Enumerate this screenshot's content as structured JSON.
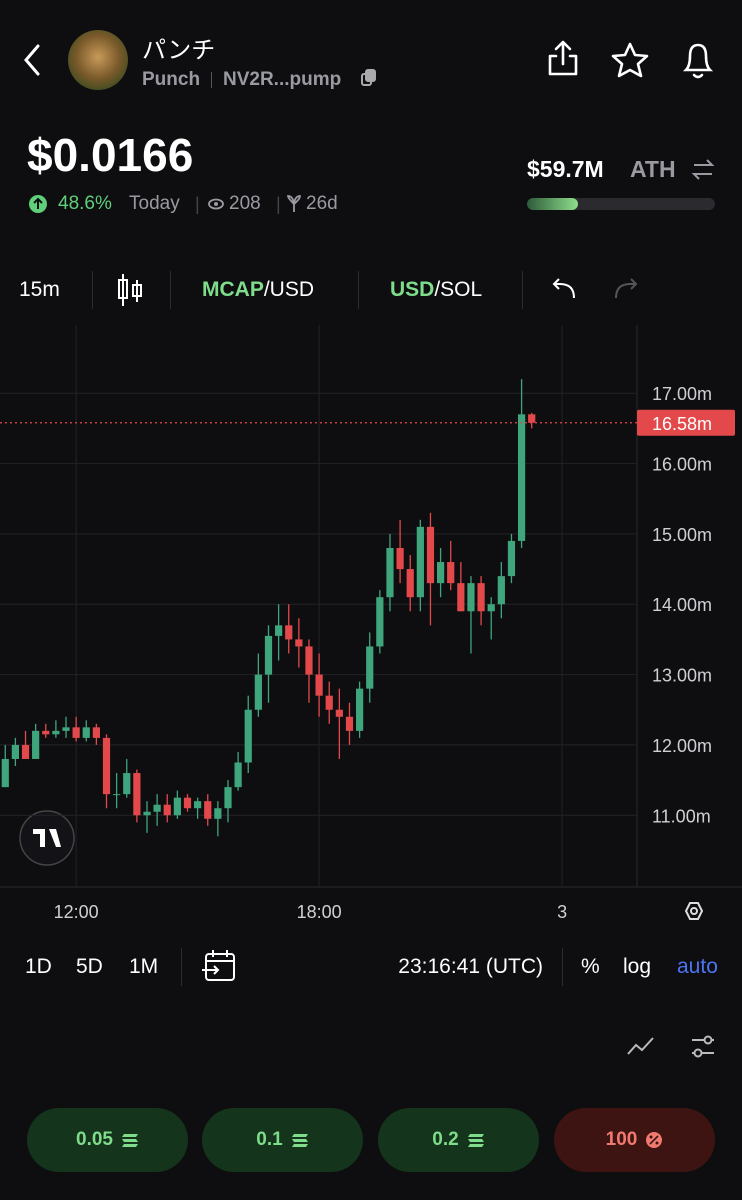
{
  "header": {
    "name": "パンチ",
    "ticker": "Punch",
    "address": "NV2R...pump",
    "price": "$0.0166",
    "change": "48.6%",
    "change_period": "Today",
    "views": "208",
    "age": "26d",
    "ath_value": "$59.7M",
    "ath_label": "ATH",
    "ath_progress": 27
  },
  "toolbar": {
    "interval": "15m",
    "pair1_main": "MCAP",
    "pair1_rest": "/USD",
    "pair2_main": "USD",
    "pair2_rest": "/SOL"
  },
  "chart_data": {
    "type": "candlestick",
    "up_color": "#3fa57c",
    "down_color": "#e3494b",
    "grid": true,
    "x": [
      10.25,
      10.5,
      10.75,
      11,
      11.25,
      11.5,
      11.75,
      12,
      12.25,
      12.5,
      12.75,
      13,
      13.25,
      13.5,
      13.75,
      14,
      14.25,
      14.5,
      14.75,
      15,
      15.25,
      15.5,
      15.75,
      16,
      16.25,
      16.5,
      16.75,
      17,
      17.25,
      17.5,
      17.75,
      18,
      18.25,
      18.5,
      18.75,
      19,
      19.25,
      19.5,
      19.75,
      20,
      20.25,
      20.5,
      20.75,
      21,
      21.25,
      21.5,
      21.75,
      22,
      22.25,
      22.5,
      22.75,
      23,
      23.25
    ],
    "open": [
      11.4,
      11.8,
      12.0,
      11.8,
      12.2,
      12.15,
      12.2,
      12.25,
      12.1,
      12.25,
      12.1,
      11.3,
      11.3,
      11.6,
      11.0,
      11.05,
      11.15,
      11.0,
      11.25,
      11.1,
      11.2,
      10.95,
      11.1,
      11.4,
      11.75,
      12.5,
      13.0,
      13.55,
      13.7,
      13.5,
      13.4,
      13.0,
      12.7,
      12.5,
      12.4,
      12.2,
      12.8,
      13.4,
      14.1,
      14.8,
      14.5,
      14.1,
      15.1,
      14.3,
      14.6,
      14.3,
      13.9,
      14.3,
      13.9,
      14.0,
      14.4,
      14.9,
      16.7
    ],
    "high": [
      12.0,
      12.1,
      12.2,
      12.3,
      12.3,
      12.35,
      12.4,
      12.4,
      12.35,
      12.3,
      12.15,
      11.6,
      11.8,
      11.65,
      11.2,
      11.3,
      11.3,
      11.35,
      11.3,
      11.25,
      11.3,
      11.2,
      11.5,
      11.9,
      12.7,
      13.3,
      13.7,
      14.0,
      14.0,
      13.8,
      13.5,
      13.3,
      12.9,
      12.8,
      12.6,
      12.9,
      13.6,
      14.2,
      15.0,
      15.2,
      14.7,
      15.2,
      15.3,
      14.8,
      14.9,
      14.6,
      14.4,
      14.4,
      14.1,
      14.6,
      15.0,
      17.2,
      16.72
    ],
    "low": [
      11.4,
      11.7,
      11.8,
      11.8,
      12.1,
      12.1,
      12.1,
      12.05,
      12.05,
      12.0,
      11.1,
      11.1,
      11.25,
      10.9,
      10.75,
      10.85,
      10.9,
      10.95,
      11.05,
      10.95,
      10.85,
      10.7,
      10.9,
      11.35,
      11.6,
      12.4,
      12.6,
      13.2,
      13.3,
      13.1,
      12.6,
      12.4,
      12.3,
      11.8,
      12.0,
      12.1,
      12.6,
      13.3,
      13.9,
      14.3,
      13.9,
      13.9,
      13.7,
      14.1,
      14.2,
      13.9,
      13.3,
      13.7,
      13.5,
      13.8,
      14.3,
      14.8,
      16.5
    ],
    "close": [
      11.8,
      12.0,
      11.8,
      12.2,
      12.15,
      12.2,
      12.25,
      12.1,
      12.25,
      12.1,
      11.3,
      11.3,
      11.6,
      11.0,
      11.05,
      11.15,
      11.0,
      11.25,
      11.1,
      11.2,
      10.95,
      11.1,
      11.4,
      11.75,
      12.5,
      13.0,
      13.55,
      13.7,
      13.5,
      13.4,
      13.0,
      12.7,
      12.5,
      12.4,
      12.2,
      12.8,
      13.4,
      14.1,
      14.8,
      14.5,
      14.1,
      15.1,
      14.3,
      14.6,
      14.3,
      13.9,
      14.3,
      13.9,
      14.0,
      14.4,
      14.9,
      16.7,
      16.58
    ],
    "xlim": [
      10.12,
      25.85
    ],
    "xticks": [
      {
        "value": 12,
        "label": "12:00"
      },
      {
        "value": 18,
        "label": "18:00"
      },
      {
        "value": 24,
        "label": "3"
      }
    ],
    "ylim": [
      9.98,
      17.97
    ],
    "yticks": [
      {
        "value": 11,
        "label": "11.00m"
      },
      {
        "value": 12,
        "label": "12.00m"
      },
      {
        "value": 13,
        "label": "13.00m"
      },
      {
        "value": 14,
        "label": "14.00m"
      },
      {
        "value": 15,
        "label": "15.00m"
      },
      {
        "value": 16,
        "label": "16.00m"
      },
      {
        "value": 17,
        "label": "17.00m"
      }
    ],
    "last_price": {
      "value": 16.58,
      "label": "16.58m"
    }
  },
  "bottom_bar": {
    "ranges": [
      "1D",
      "5D",
      "1M"
    ],
    "time": "23:16:41 (UTC)",
    "percent": "%",
    "log": "log",
    "auto": "auto"
  },
  "buttons": [
    "0.05",
    "0.1",
    "0.2",
    "100"
  ]
}
